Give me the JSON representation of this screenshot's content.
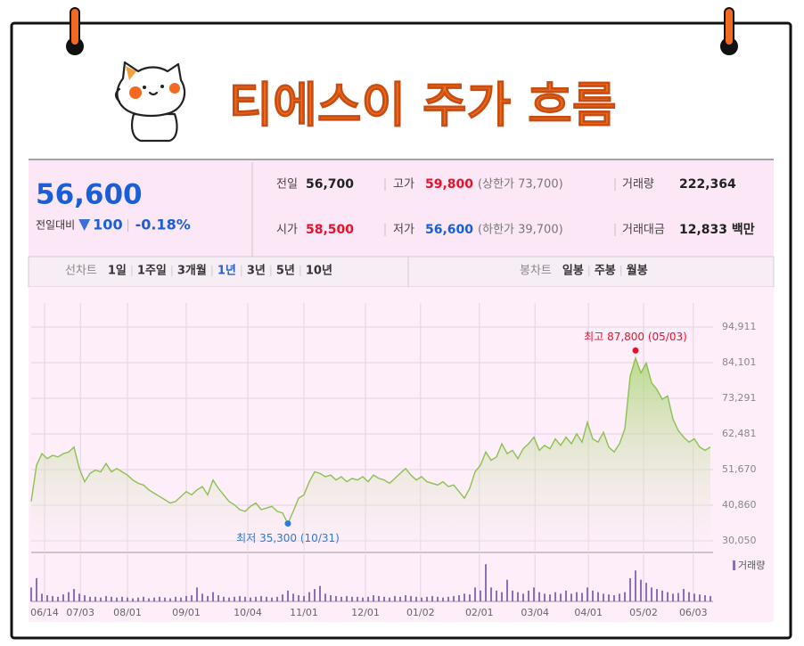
{
  "header": {
    "title": "티에스이 주가 흐름"
  },
  "quote": {
    "price": "56,600",
    "change_label": "전일대비",
    "change": "100",
    "change_pct": "-0.18%",
    "fields": [
      {
        "label": "전일",
        "value": "56,700",
        "color": "#222222"
      },
      {
        "label": "고가",
        "value": "59,800",
        "color": "#e8112d",
        "note": "(상한가 73,700)"
      },
      {
        "label": "거래량",
        "value": "222,364",
        "color": "#222222"
      },
      {
        "label": "시가",
        "value": "58,500",
        "color": "#e8112d"
      },
      {
        "label": "저가",
        "value": "56,600",
        "color": "#1a5fd6",
        "note": "(하한가 39,700)"
      },
      {
        "label": "거래대금",
        "value": "12,833 백만",
        "color": "#222222"
      }
    ]
  },
  "tabs": {
    "line_label": "선차트",
    "periods": [
      "1일",
      "1주일",
      "3개월",
      "1년",
      "3년",
      "5년",
      "10년"
    ],
    "selected": "1년",
    "candle_label": "봉차트",
    "candle_periods": [
      "일봉",
      "주봉",
      "월봉"
    ]
  },
  "chart_data": {
    "type": "line",
    "xlim": [
      0,
      127.5
    ],
    "ylim": [
      27077,
      102208
    ],
    "xticks": [
      {
        "value": 2.5,
        "label": "06/14"
      },
      {
        "value": 9.2,
        "label": "07/03"
      },
      {
        "value": 18,
        "label": "08/01"
      },
      {
        "value": 29,
        "label": "09/01"
      },
      {
        "value": 40.5,
        "label": "10/04"
      },
      {
        "value": 51,
        "label": "11/01"
      },
      {
        "value": 62.5,
        "label": "12/01"
      },
      {
        "value": 72.8,
        "label": "01/02"
      },
      {
        "value": 83.8,
        "label": "02/01"
      },
      {
        "value": 94.2,
        "label": "03/04"
      },
      {
        "value": 104.2,
        "label": "04/01"
      },
      {
        "value": 114.5,
        "label": "05/02"
      },
      {
        "value": 123.8,
        "label": "06/03"
      }
    ],
    "yticks": [
      {
        "value": 94911,
        "label": "94,911"
      },
      {
        "value": 84101,
        "label": "84,101"
      },
      {
        "value": 73291,
        "label": "73,291"
      },
      {
        "value": 62481,
        "label": "62,481"
      },
      {
        "value": 51670,
        "label": "51,670"
      },
      {
        "value": 40860,
        "label": "40,860"
      },
      {
        "value": 30050,
        "label": "30,050"
      }
    ],
    "grid": true,
    "series": [
      {
        "color": "#8cc152",
        "values": [
          42000,
          53000,
          56500,
          55000,
          56000,
          55500,
          56500,
          57000,
          58500,
          52000,
          48000,
          50500,
          51500,
          51000,
          53500,
          51000,
          52000,
          51000,
          50000,
          48500,
          47500,
          47000,
          45500,
          44500,
          43500,
          42500,
          41500,
          42000,
          43500,
          45000,
          44000,
          45500,
          46500,
          44000,
          48500,
          46000,
          44000,
          42000,
          41000,
          39500,
          39000,
          40500,
          41500,
          39500,
          40000,
          40500,
          39000,
          38500,
          35300,
          39000,
          43000,
          44000,
          48000,
          51000,
          50500,
          49500,
          50000,
          48500,
          49500,
          48000,
          49000,
          48500,
          49500,
          48000,
          50000,
          49000,
          48500,
          47500,
          49000,
          50500,
          52000,
          50000,
          48500,
          49500,
          48000,
          47500,
          47000,
          48000,
          46500,
          47000,
          45000,
          43000,
          46000,
          51000,
          53000,
          57000,
          54500,
          55500,
          59500,
          56500,
          57500,
          55000,
          58000,
          59500,
          61500,
          57500,
          59000,
          58000,
          61000,
          59000,
          61500,
          59500,
          62500,
          60000,
          66000,
          61000,
          60000,
          63000,
          58500,
          57000,
          59500,
          64000,
          80000,
          85500,
          81000,
          84000,
          78000,
          76000,
          73000,
          74000,
          67000,
          63500,
          61500,
          60000,
          61000,
          58500,
          57500,
          58500
        ]
      }
    ],
    "volume": {
      "name": "거래량",
      "color": "#8b6fb8",
      "vlim": [
        0,
        2700000
      ],
      "values": [
        900000,
        1500000,
        500000,
        400000,
        350000,
        300000,
        450000,
        600000,
        800000,
        500000,
        400000,
        300000,
        300000,
        250000,
        350000,
        300000,
        250000,
        300000,
        250000,
        200000,
        250000,
        300000,
        200000,
        250000,
        300000,
        250000,
        200000,
        300000,
        250000,
        350000,
        400000,
        900000,
        500000,
        350000,
        600000,
        400000,
        300000,
        250000,
        300000,
        350000,
        300000,
        250000,
        300000,
        350000,
        300000,
        250000,
        300000,
        450000,
        700000,
        500000,
        400000,
        350000,
        600000,
        800000,
        1000000,
        500000,
        400000,
        350000,
        300000,
        350000,
        300000,
        300000,
        250000,
        300000,
        400000,
        350000,
        300000,
        250000,
        350000,
        300000,
        400000,
        350000,
        300000,
        250000,
        300000,
        350000,
        300000,
        250000,
        300000,
        350000,
        400000,
        500000,
        450000,
        900000,
        700000,
        2400000,
        900000,
        700000,
        600000,
        1400000,
        700000,
        600000,
        500000,
        700000,
        900000,
        600000,
        500000,
        450000,
        600000,
        500000,
        700000,
        500000,
        600000,
        550000,
        900000,
        700000,
        600000,
        500000,
        450000,
        400000,
        500000,
        600000,
        1500000,
        2000000,
        1400000,
        1200000,
        900000,
        800000,
        700000,
        600000,
        500000,
        550000,
        800000,
        600000,
        500000,
        450000,
        400000,
        350000
      ]
    },
    "annotations": [
      {
        "text": "최고 87,800 (05/03)",
        "value": 87800,
        "color": "#e8112d"
      },
      {
        "text": "최저 35,300 (10/31)",
        "value": 35300,
        "color": "#2d7bd6"
      }
    ]
  }
}
